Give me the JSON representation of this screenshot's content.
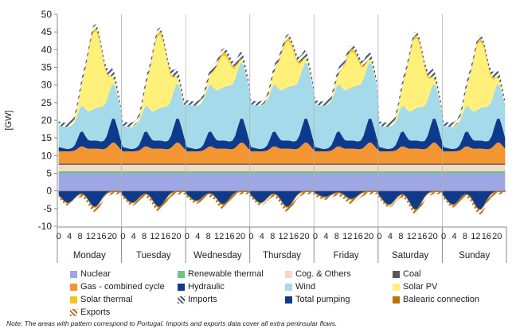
{
  "chart_data": {
    "type": "area",
    "subtype": "stacked",
    "ylabel": "[GW]",
    "ylim": [
      -10,
      50
    ],
    "yticks": [
      -10,
      -5,
      0,
      5,
      10,
      15,
      20,
      25,
      30,
      35,
      40,
      45,
      50
    ],
    "grid": false,
    "legend_position": "bottom",
    "hour_tick_labels": [
      "0",
      "4",
      "8",
      "12",
      "16",
      "20"
    ],
    "days": [
      "Monday",
      "Tuesday",
      "Wednesday",
      "Thursday",
      "Friday",
      "Saturday",
      "Sunday"
    ],
    "hours_per_day": 24,
    "approx_daily_profiles": {
      "Monday": {
        "peak_total_gw": 39,
        "peak_solar_pv_gw": 22,
        "min_pumping_gw": -6
      },
      "Tuesday": {
        "peak_total_gw": 41,
        "peak_solar_pv_gw": 21,
        "min_pumping_gw": -6
      },
      "Wednesday": {
        "peak_total_gw": 41,
        "peak_solar_pv_gw": 9,
        "min_pumping_gw": -5
      },
      "Thursday": {
        "peak_total_gw": 41,
        "peak_solar_pv_gw": 13,
        "min_pumping_gw": -6
      },
      "Friday": {
        "peak_total_gw": 40,
        "peak_solar_pv_gw": 10,
        "min_pumping_gw": -3
      },
      "Saturday": {
        "peak_total_gw": 38,
        "peak_solar_pv_gw": 20,
        "min_pumping_gw": -7
      },
      "Sunday": {
        "peak_total_gw": 35,
        "peak_solar_pv_gw": 19,
        "min_pumping_gw": -7
      }
    },
    "series": [
      {
        "name": "Nuclear",
        "color": "#9EA7E3"
      },
      {
        "name": "Renewable thermal",
        "color": "#70C387"
      },
      {
        "name": "Cog. & Others",
        "color": "#F6D8C8"
      },
      {
        "name": "Coal",
        "color": "#595959"
      },
      {
        "name": "Gas - combined cycle",
        "color": "#F39531"
      },
      {
        "name": "Hydraulic",
        "color": "#0F3A8C"
      },
      {
        "name": "Wind",
        "color": "#A4DAE9"
      },
      {
        "name": "Solar PV",
        "color": "#FFF07A"
      },
      {
        "name": "Solar thermal",
        "color": "#F2C51E"
      },
      {
        "name": "Imports",
        "color": "#4A5570",
        "pattern": "hatched"
      },
      {
        "name": "Total pumping",
        "color": "#0F3A8C"
      },
      {
        "name": "Balearic connection",
        "color": "#B8720C"
      },
      {
        "name": "Exports",
        "color": "#B8720C",
        "pattern": "hatched"
      }
    ]
  },
  "note": "Note: The areas with pattern correspond to Portugal. Imports and exports data cover all extra peninsular flows."
}
